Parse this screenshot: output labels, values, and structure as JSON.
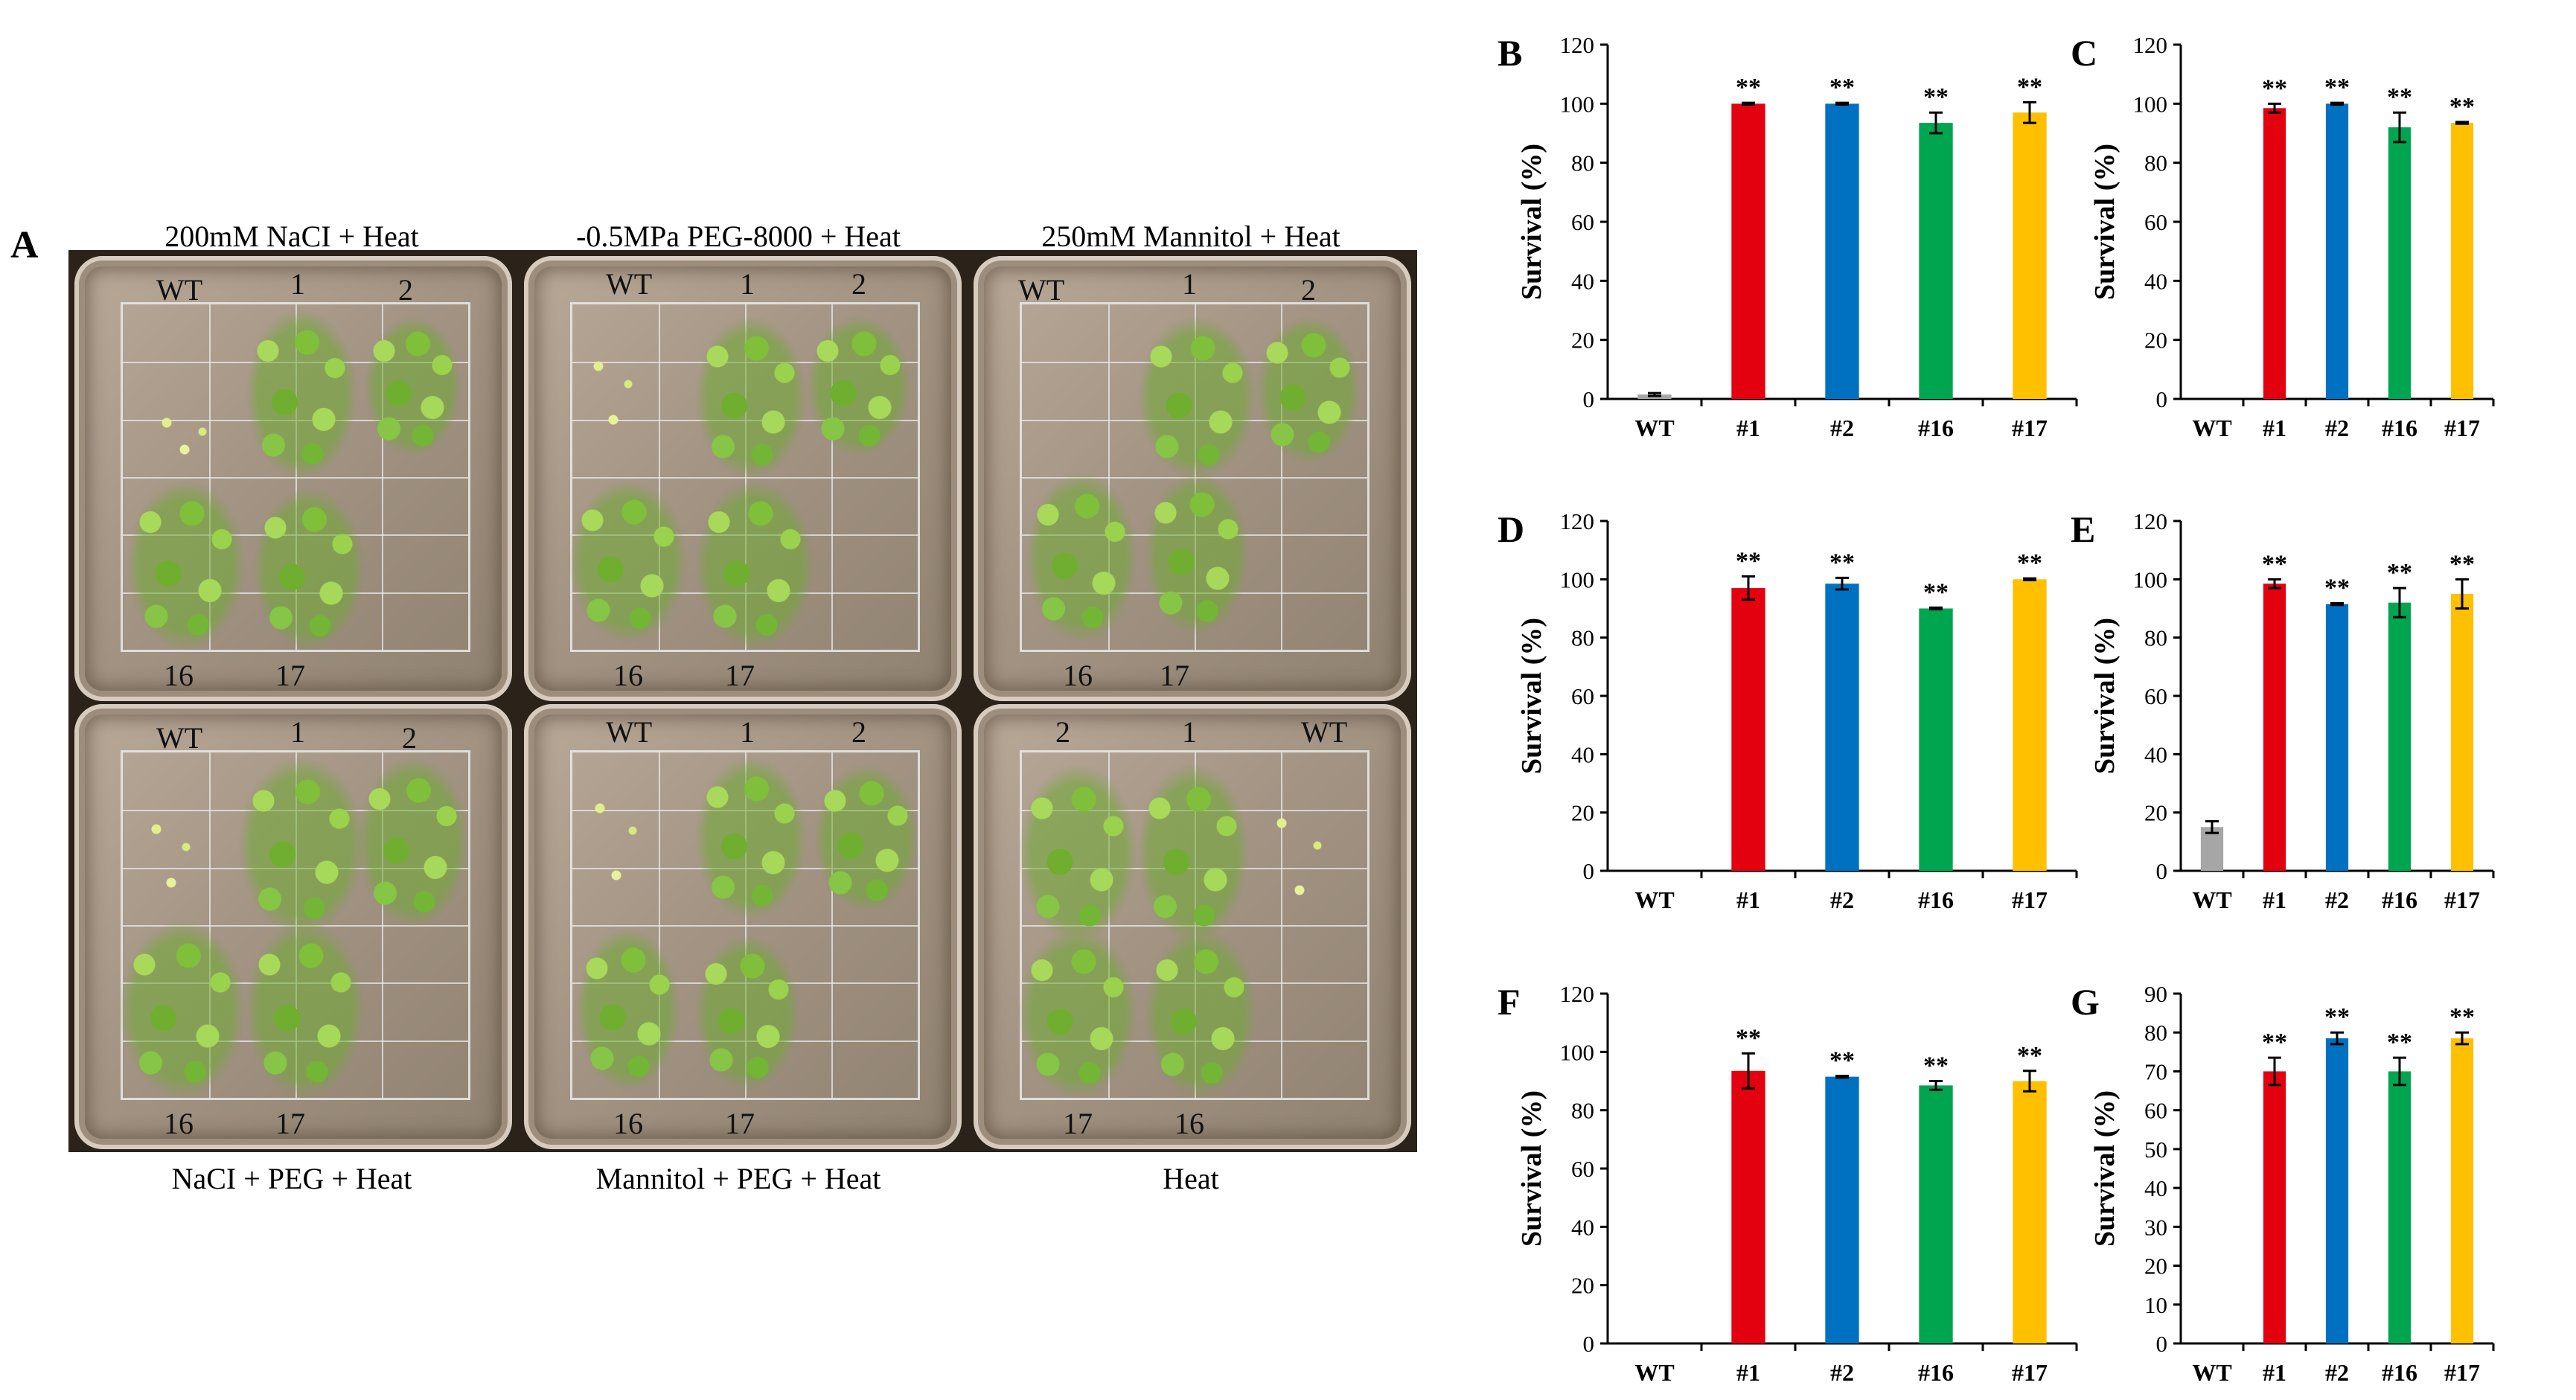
{
  "panel_a": {
    "letter": "A",
    "plates": [
      {
        "caption": "200mM NaCI + Heat",
        "labels": [
          "WT",
          "1",
          "2",
          "16",
          "17"
        ]
      },
      {
        "caption": "-0.5MPa PEG-8000 + Heat",
        "labels": [
          "WT",
          "1",
          "2",
          "16",
          "17"
        ]
      },
      {
        "caption": "250mM Mannitol + Heat",
        "labels": [
          "WT",
          "1",
          "2",
          "16",
          "17"
        ]
      },
      {
        "caption": "NaCI + PEG + Heat",
        "labels": [
          "WT",
          "1",
          "2",
          "16",
          "17"
        ]
      },
      {
        "caption": "Mannitol + PEG + Heat",
        "labels": [
          "WT",
          "1",
          "2",
          "16",
          "17"
        ]
      },
      {
        "caption": "Heat",
        "labels": [
          "2",
          "1",
          "WT",
          "17",
          "16"
        ]
      }
    ]
  },
  "chart_data": [
    {
      "panel": "B",
      "type": "bar",
      "categories": [
        "WT",
        "#1",
        "#2",
        "#16",
        "#17"
      ],
      "values": [
        1.5,
        100,
        100,
        93.5,
        97
      ],
      "errors": [
        0.5,
        0.3,
        0.3,
        3.5,
        3.5
      ],
      "significance": [
        "",
        "**",
        "**",
        "**",
        "**"
      ],
      "ylabel": "Survival (%)",
      "ylim": [
        0,
        120
      ],
      "yticks": [
        0,
        20,
        40,
        60,
        80,
        100,
        120
      ],
      "colors": [
        "#a6a6a6",
        "#e3000f",
        "#0070c0",
        "#00a550",
        "#ffc000"
      ]
    },
    {
      "panel": "C",
      "type": "bar",
      "categories": [
        "WT",
        "#1",
        "#2",
        "#16",
        "#17"
      ],
      "values": [
        0,
        98.5,
        100,
        92,
        93.5
      ],
      "errors": [
        0,
        1.5,
        0.3,
        5,
        0.3
      ],
      "significance": [
        "",
        "**",
        "**",
        "**",
        "**"
      ],
      "ylabel": "Survival (%)",
      "ylim": [
        0,
        120
      ],
      "yticks": [
        0,
        20,
        40,
        60,
        80,
        100,
        120
      ],
      "colors": [
        "#a6a6a6",
        "#e3000f",
        "#0070c0",
        "#00a550",
        "#ffc000"
      ]
    },
    {
      "panel": "D",
      "type": "bar",
      "categories": [
        "WT",
        "#1",
        "#2",
        "#16",
        "#17"
      ],
      "values": [
        0,
        97,
        98.5,
        90,
        100
      ],
      "errors": [
        0,
        4,
        2,
        0.3,
        0.3
      ],
      "significance": [
        "",
        "**",
        "**",
        "**",
        "**"
      ],
      "ylabel": "Survival (%)",
      "ylim": [
        0,
        120
      ],
      "yticks": [
        0,
        20,
        40,
        60,
        80,
        100,
        120
      ],
      "colors": [
        "#a6a6a6",
        "#e3000f",
        "#0070c0",
        "#00a550",
        "#ffc000"
      ]
    },
    {
      "panel": "E",
      "type": "bar",
      "categories": [
        "WT",
        "#1",
        "#2",
        "#16",
        "#17"
      ],
      "values": [
        15,
        98.5,
        91.5,
        92,
        95
      ],
      "errors": [
        2,
        1.5,
        0.3,
        5,
        5
      ],
      "significance": [
        "",
        "**",
        "**",
        "**",
        "**"
      ],
      "ylabel": "Survival (%)",
      "ylim": [
        0,
        120
      ],
      "yticks": [
        0,
        20,
        40,
        60,
        80,
        100,
        120
      ],
      "colors": [
        "#a6a6a6",
        "#e3000f",
        "#0070c0",
        "#00a550",
        "#ffc000"
      ]
    },
    {
      "panel": "F",
      "type": "bar",
      "categories": [
        "WT",
        "#1",
        "#2",
        "#16",
        "#17"
      ],
      "values": [
        0,
        93.5,
        91.5,
        88.5,
        90
      ],
      "errors": [
        0,
        6,
        0.3,
        1.5,
        3.5
      ],
      "significance": [
        "",
        "**",
        "**",
        "**",
        "**"
      ],
      "ylabel": "Survival (%)",
      "ylim": [
        0,
        120
      ],
      "yticks": [
        0,
        20,
        40,
        60,
        80,
        100,
        120
      ],
      "colors": [
        "#a6a6a6",
        "#e3000f",
        "#0070c0",
        "#00a550",
        "#ffc000"
      ]
    },
    {
      "panel": "G",
      "type": "bar",
      "categories": [
        "WT",
        "#1",
        "#2",
        "#16",
        "#17"
      ],
      "values": [
        0,
        70,
        78.5,
        70,
        78.5
      ],
      "errors": [
        0,
        3.5,
        1.5,
        3.5,
        1.5
      ],
      "significance": [
        "",
        "**",
        "**",
        "**",
        "**"
      ],
      "ylabel": "Survival (%)",
      "ylim": [
        0,
        90
      ],
      "yticks": [
        0,
        10,
        20,
        30,
        40,
        50,
        60,
        70,
        80,
        90
      ],
      "colors": [
        "#a6a6a6",
        "#e3000f",
        "#0070c0",
        "#00a550",
        "#ffc000"
      ]
    }
  ]
}
